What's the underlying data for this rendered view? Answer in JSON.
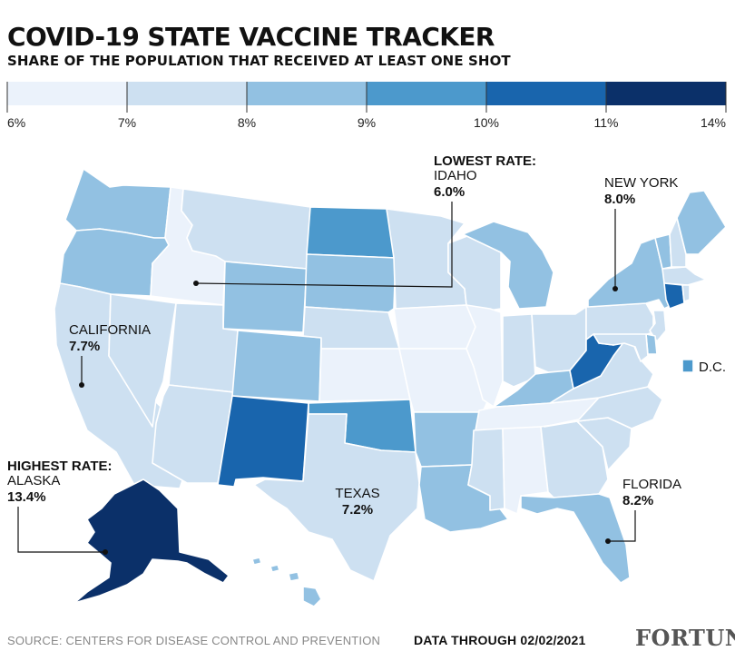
{
  "header": {
    "title": "COVID-19 STATE VACCINE TRACKER",
    "subtitle": "SHARE OF THE POPULATION THAT RECEIVED AT LEAST ONE SHOT"
  },
  "legend": {
    "bins": [
      {
        "from": 6,
        "to": 7,
        "color": "#ebf2fb"
      },
      {
        "from": 7,
        "to": 8,
        "color": "#cde0f1"
      },
      {
        "from": 8,
        "to": 9,
        "color": "#92c1e2"
      },
      {
        "from": 9,
        "to": 10,
        "color": "#4c99cc"
      },
      {
        "from": 10,
        "to": 11,
        "color": "#1965ad"
      },
      {
        "from": 11,
        "to": 14,
        "color": "#0b3069"
      }
    ],
    "ticks": [
      "6%",
      "7%",
      "8%",
      "9%",
      "10%",
      "11%",
      "14%"
    ]
  },
  "annotations": {
    "lowest": {
      "heading": "LOWEST RATE:",
      "state": "IDAHO",
      "value": "6.0%"
    },
    "highest": {
      "heading": "HIGHEST RATE:",
      "state": "ALASKA",
      "value": "13.4%"
    },
    "new_york": {
      "state": "NEW YORK",
      "value": "8.0%"
    },
    "california": {
      "state": "CALIFORNIA",
      "value": "7.7%"
    },
    "texas": {
      "state": "TEXAS",
      "value": "7.2%"
    },
    "florida": {
      "state": "FLORIDA",
      "value": "8.2%"
    },
    "dc": {
      "label": "D.C."
    }
  },
  "map": {
    "states": [
      {
        "name": "washington",
        "bin": 2
      },
      {
        "name": "oregon",
        "bin": 2
      },
      {
        "name": "california",
        "bin": 1
      },
      {
        "name": "nevada",
        "bin": 1
      },
      {
        "name": "idaho",
        "bin": 0
      },
      {
        "name": "montana",
        "bin": 1
      },
      {
        "name": "wyoming",
        "bin": 2
      },
      {
        "name": "utah",
        "bin": 1
      },
      {
        "name": "arizona",
        "bin": 1
      },
      {
        "name": "colorado",
        "bin": 2
      },
      {
        "name": "new-mexico",
        "bin": 4
      },
      {
        "name": "north-dakota",
        "bin": 3
      },
      {
        "name": "south-dakota",
        "bin": 2
      },
      {
        "name": "nebraska",
        "bin": 1
      },
      {
        "name": "kansas",
        "bin": 0
      },
      {
        "name": "oklahoma",
        "bin": 3
      },
      {
        "name": "texas",
        "bin": 1
      },
      {
        "name": "minnesota",
        "bin": 1
      },
      {
        "name": "iowa",
        "bin": 0
      },
      {
        "name": "missouri",
        "bin": 0
      },
      {
        "name": "arkansas",
        "bin": 2
      },
      {
        "name": "louisiana",
        "bin": 2
      },
      {
        "name": "wisconsin",
        "bin": 1
      },
      {
        "name": "illinois",
        "bin": 0
      },
      {
        "name": "michigan",
        "bin": 2
      },
      {
        "name": "indiana",
        "bin": 1
      },
      {
        "name": "ohio",
        "bin": 1
      },
      {
        "name": "kentucky",
        "bin": 2
      },
      {
        "name": "tennessee",
        "bin": 0
      },
      {
        "name": "mississippi",
        "bin": 1
      },
      {
        "name": "alabama",
        "bin": 0
      },
      {
        "name": "georgia",
        "bin": 1
      },
      {
        "name": "florida",
        "bin": 2
      },
      {
        "name": "south-carolina",
        "bin": 1
      },
      {
        "name": "north-carolina",
        "bin": 1
      },
      {
        "name": "virginia",
        "bin": 1
      },
      {
        "name": "west-virginia",
        "bin": 4
      },
      {
        "name": "pennsylvania",
        "bin": 1
      },
      {
        "name": "new-york",
        "bin": 2
      },
      {
        "name": "vermont",
        "bin": 2
      },
      {
        "name": "new-hampshire",
        "bin": 1
      },
      {
        "name": "maine",
        "bin": 2
      },
      {
        "name": "massachusetts",
        "bin": 1
      },
      {
        "name": "connecticut",
        "bin": 4
      },
      {
        "name": "rhode-island",
        "bin": 1
      },
      {
        "name": "new-jersey",
        "bin": 1
      },
      {
        "name": "delaware",
        "bin": 2
      },
      {
        "name": "maryland",
        "bin": 1
      },
      {
        "name": "district-of-columbia",
        "bin": 3
      },
      {
        "name": "alaska",
        "bin": 5
      },
      {
        "name": "hawaii",
        "bin": 2
      }
    ]
  },
  "footer": {
    "source": "SOURCE: CENTERS FOR DISEASE CONTROL AND PREVENTION",
    "date": "DATA THROUGH 02/02/2021",
    "logo": "FORTUNE"
  }
}
